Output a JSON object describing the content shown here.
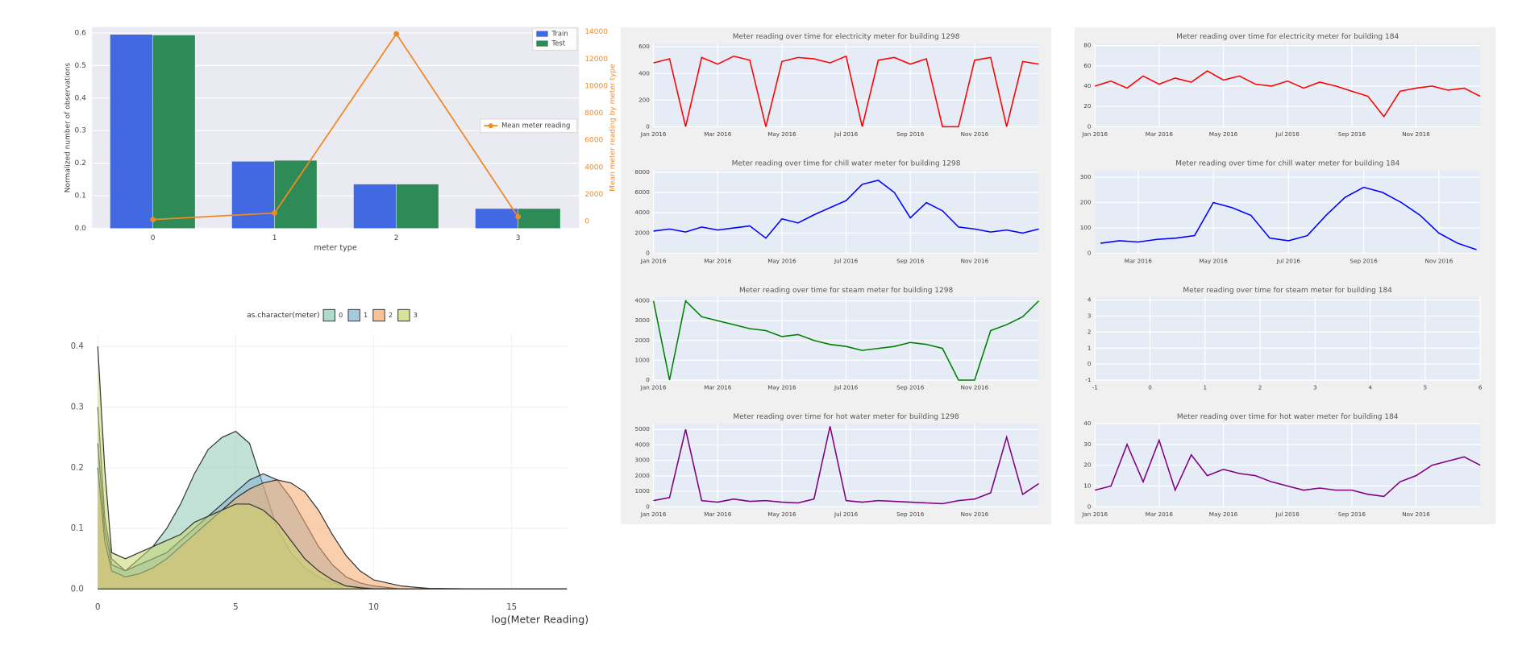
{
  "chart_data": [
    {
      "type": "bar",
      "categories": [
        "0",
        "1",
        "2",
        "3"
      ],
      "series": [
        {
          "name": "Train",
          "color": "#4169e1",
          "values": [
            0.595,
            0.205,
            0.135,
            0.06
          ]
        },
        {
          "name": "Test",
          "color": "#2e8b57",
          "values": [
            0.593,
            0.208,
            0.135,
            0.06
          ]
        },
        {
          "name": "Mean meter reading",
          "color": "#f08a24",
          "type": "line",
          "axis": "y2",
          "values": [
            140,
            630,
            13860,
            350
          ]
        }
      ],
      "xlabel": "meter type",
      "ylabel": "Normalized number of observations",
      "y2label": "Mean meter reading by meter type",
      "ylim": [
        0,
        0.618
      ],
      "yticks": [
        {
          "value": 0,
          "label": "0.0"
        },
        0.1,
        0.2,
        0.3,
        0.4,
        0.5,
        0.6
      ],
      "y2lim": [
        -500,
        14360
      ],
      "y2ticks": [
        0,
        2000,
        4000,
        6000,
        8000,
        10000,
        12000,
        14000
      ],
      "grid": true,
      "legend": "upper right"
    },
    {
      "type": "area",
      "xlabel": "log(Meter Reading)",
      "legend_title": "as.character(meter)",
      "x": [
        0,
        0.25,
        0.5,
        1,
        1.5,
        2,
        2.5,
        3,
        3.5,
        4,
        4.5,
        5,
        5.5,
        6,
        6.5,
        7,
        7.5,
        8,
        8.5,
        9,
        9.5,
        10,
        11,
        12,
        14,
        17
      ],
      "series": [
        {
          "name": "0",
          "color": "#8fcab6",
          "values": [
            0.3,
            0.12,
            0.05,
            0.03,
            0.05,
            0.07,
            0.1,
            0.14,
            0.19,
            0.23,
            0.25,
            0.26,
            0.24,
            0.17,
            0.1,
            0.06,
            0.035,
            0.02,
            0.01,
            0.005,
            0.003,
            0.001,
            0,
            0,
            0,
            0
          ]
        },
        {
          "name": "1",
          "color": "#7fb3cf",
          "values": [
            0.24,
            0.1,
            0.04,
            0.03,
            0.04,
            0.05,
            0.06,
            0.08,
            0.1,
            0.12,
            0.14,
            0.16,
            0.18,
            0.19,
            0.18,
            0.15,
            0.11,
            0.07,
            0.04,
            0.02,
            0.01,
            0.005,
            0,
            0,
            0,
            0
          ]
        },
        {
          "name": "2",
          "color": "#f5a76c",
          "values": [
            0.2,
            0.08,
            0.03,
            0.02,
            0.025,
            0.035,
            0.05,
            0.07,
            0.09,
            0.11,
            0.13,
            0.15,
            0.165,
            0.175,
            0.18,
            0.175,
            0.16,
            0.13,
            0.09,
            0.055,
            0.03,
            0.015,
            0.005,
            0.001,
            0,
            0
          ]
        },
        {
          "name": "3",
          "color": "#c9d66e",
          "values": [
            0.4,
            0.2,
            0.06,
            0.05,
            0.06,
            0.07,
            0.08,
            0.09,
            0.11,
            0.12,
            0.13,
            0.14,
            0.14,
            0.13,
            0.11,
            0.08,
            0.05,
            0.03,
            0.015,
            0.005,
            0.002,
            0,
            0,
            0,
            0,
            0
          ]
        }
      ],
      "xlim": [
        0,
        17
      ],
      "xticks": [
        0,
        5,
        10,
        15
      ],
      "ylim": [
        0,
        0.42
      ],
      "yticks": [
        {
          "value": 0,
          "label": "0.0"
        },
        0.1,
        0.2,
        0.3,
        0.4
      ],
      "grid": true
    },
    {
      "type": "line",
      "title": "Meter reading over time for electricity meter for building 1298",
      "x": [
        0,
        0.5,
        1,
        1.5,
        2,
        2.5,
        3,
        3.5,
        4,
        4.5,
        5,
        5.5,
        6,
        6.5,
        7,
        7.5,
        8,
        8.5,
        9,
        9.5,
        10,
        10.5,
        11,
        11.5,
        12
      ],
      "series": [
        {
          "color": "#ff0000",
          "values": [
            480,
            510,
            0,
            520,
            470,
            530,
            500,
            0,
            490,
            520,
            510,
            480,
            530,
            0,
            500,
            520,
            470,
            510,
            0,
            0,
            500,
            520,
            0,
            490,
            470
          ]
        }
      ],
      "xlim": [
        0,
        12
      ],
      "xticks": [
        {
          "value": 0,
          "label": "Jan 2016"
        },
        {
          "value": 2,
          "label": "Mar 2016"
        },
        {
          "value": 4,
          "label": "May 2016"
        },
        {
          "value": 6,
          "label": "Jul 2016"
        },
        {
          "value": 8,
          "label": "Sep 2016"
        },
        {
          "value": 10,
          "label": "Nov 2016"
        }
      ],
      "ylim": [
        0,
        625
      ],
      "yticks": [
        0,
        200,
        400,
        600
      ],
      "grid": true
    },
    {
      "type": "line",
      "title": "Meter reading over time for chill water meter for building 1298",
      "x": [
        0,
        0.5,
        1,
        1.5,
        2,
        2.5,
        3,
        3.5,
        4,
        4.5,
        5,
        5.5,
        6,
        6.5,
        7,
        7.5,
        8,
        8.5,
        9,
        9.5,
        10,
        10.5,
        11,
        11.5,
        12
      ],
      "series": [
        {
          "color": "#0000ff",
          "values": [
            2200,
            2400,
            2100,
            2600,
            2300,
            2500,
            2700,
            1500,
            3400,
            3000,
            3800,
            4500,
            5200,
            6800,
            7200,
            6000,
            3500,
            5000,
            4200,
            2600,
            2400,
            2100,
            2300,
            2000,
            2400
          ]
        }
      ],
      "xlim": [
        0,
        12
      ],
      "xticks": [
        {
          "value": 0,
          "label": "Jan 2016"
        },
        {
          "value": 2,
          "label": "Mar 2016"
        },
        {
          "value": 4,
          "label": "May 2016"
        },
        {
          "value": 6,
          "label": "Jul 2016"
        },
        {
          "value": 8,
          "label": "Sep 2016"
        },
        {
          "value": 10,
          "label": "Nov 2016"
        }
      ],
      "ylim": [
        0,
        8190
      ],
      "yticks": [
        0,
        2000,
        4000,
        6000,
        8000
      ],
      "grid": true
    },
    {
      "type": "line",
      "title": "Meter reading over time for steam meter for building 1298",
      "x": [
        0,
        0.5,
        1,
        1.5,
        2,
        2.5,
        3,
        3.5,
        4,
        4.5,
        5,
        5.5,
        6,
        6.5,
        7,
        7.5,
        8,
        8.5,
        9,
        9.5,
        10,
        10.5,
        11,
        11.5,
        12
      ],
      "series": [
        {
          "color": "#008000",
          "values": [
            4000,
            0,
            4000,
            3200,
            3000,
            2800,
            2600,
            2500,
            2200,
            2300,
            2000,
            1800,
            1700,
            1500,
            1600,
            1700,
            1900,
            1800,
            1600,
            0,
            0,
            2500,
            2800,
            3200,
            4000
          ]
        }
      ],
      "xlim": [
        0,
        12
      ],
      "xticks": [
        {
          "value": 0,
          "label": "Jan 2016"
        },
        {
          "value": 2,
          "label": "Mar 2016"
        },
        {
          "value": 4,
          "label": "May 2016"
        },
        {
          "value": 6,
          "label": "Jul 2016"
        },
        {
          "value": 8,
          "label": "Sep 2016"
        },
        {
          "value": 10,
          "label": "Nov 2016"
        }
      ],
      "ylim": [
        0,
        4200
      ],
      "yticks": [
        0,
        1000,
        2000,
        3000,
        4000
      ],
      "grid": true
    },
    {
      "type": "line",
      "title": "Meter reading over time for hot water meter for building 1298",
      "x": [
        0,
        0.5,
        1,
        1.5,
        2,
        2.5,
        3,
        3.5,
        4,
        4.5,
        5,
        5.5,
        6,
        6.5,
        7,
        7.5,
        8,
        8.5,
        9,
        9.5,
        10,
        10.5,
        11,
        11.5,
        12
      ],
      "series": [
        {
          "color": "#800080",
          "values": [
            400,
            600,
            5000,
            400,
            300,
            500,
            350,
            400,
            300,
            250,
            500,
            5200,
            400,
            300,
            400,
            350,
            300,
            250,
            200,
            400,
            500,
            900,
            4500,
            800,
            1500
          ]
        }
      ],
      "xlim": [
        0,
        12
      ],
      "xticks": [
        {
          "value": 0,
          "label": "Jan 2016"
        },
        {
          "value": 2,
          "label": "Mar 2016"
        },
        {
          "value": 4,
          "label": "May 2016"
        },
        {
          "value": 6,
          "label": "Jul 2016"
        },
        {
          "value": 8,
          "label": "Sep 2016"
        },
        {
          "value": 10,
          "label": "Nov 2016"
        }
      ],
      "ylim": [
        0,
        5375
      ],
      "yticks": [
        0,
        1000,
        2000,
        3000,
        4000,
        5000
      ],
      "grid": true
    },
    {
      "type": "line",
      "title": "Meter reading over time for electricity meter for building 184",
      "x": [
        0,
        0.5,
        1,
        1.5,
        2,
        2.5,
        3,
        3.5,
        4,
        4.5,
        5,
        5.5,
        6,
        6.5,
        7,
        7.5,
        8,
        8.5,
        9,
        9.5,
        10,
        10.5,
        11,
        11.5,
        12
      ],
      "series": [
        {
          "color": "#ff0000",
          "values": [
            40,
            45,
            38,
            50,
            42,
            48,
            44,
            55,
            46,
            50,
            42,
            40,
            45,
            38,
            44,
            40,
            35,
            30,
            10,
            35,
            38,
            40,
            36,
            38,
            30
          ]
        }
      ],
      "xlim": [
        0,
        12
      ],
      "xticks": [
        {
          "value": 0,
          "label": "Jan 2016"
        },
        {
          "value": 2,
          "label": "Mar 2016"
        },
        {
          "value": 4,
          "label": "May 2016"
        },
        {
          "value": 6,
          "label": "Jul 2016"
        },
        {
          "value": 8,
          "label": "Sep 2016"
        },
        {
          "value": 10,
          "label": "Nov 2016"
        }
      ],
      "ylim": [
        0,
        82
      ],
      "yticks": [
        0,
        20,
        40,
        60,
        80
      ],
      "grid": true
    },
    {
      "type": "line",
      "title": "Meter reading over time for chill water meter for building 184",
      "x": [
        1,
        1.5,
        2,
        2.5,
        3,
        3.5,
        4,
        4.5,
        5,
        5.5,
        6,
        6.5,
        7,
        7.5,
        8,
        8.5,
        9,
        9.5,
        10,
        10.5,
        11
      ],
      "series": [
        {
          "color": "#0000ff",
          "values": [
            40,
            50,
            45,
            55,
            60,
            70,
            200,
            180,
            150,
            60,
            50,
            70,
            150,
            220,
            260,
            240,
            200,
            150,
            80,
            40,
            15
          ]
        }
      ],
      "xlim": [
        0.85,
        11.1
      ],
      "xticks": [
        {
          "value": 2,
          "label": "Mar 2016"
        },
        {
          "value": 4,
          "label": "May 2016"
        },
        {
          "value": 6,
          "label": "Jul 2016"
        },
        {
          "value": 8,
          "label": "Sep 2016"
        },
        {
          "value": 10,
          "label": "Nov 2016"
        }
      ],
      "ylim": [
        0,
        327
      ],
      "yticks": [
        0,
        100,
        200,
        300
      ],
      "grid": true
    },
    {
      "type": "line",
      "title": "Meter reading over time for steam meter for building 184",
      "x": [],
      "series": [],
      "xlim": [
        -1,
        6
      ],
      "xticks": [
        -1,
        0,
        1,
        2,
        3,
        4,
        5,
        6
      ],
      "ylim": [
        -1,
        4.2
      ],
      "yticks": [
        -1,
        0,
        1,
        2,
        3,
        4
      ],
      "grid": true
    },
    {
      "type": "line",
      "title": "Meter reading over time for hot water meter for building 184",
      "x": [
        0,
        0.5,
        1,
        1.5,
        2,
        2.5,
        3,
        3.5,
        4,
        4.5,
        5,
        5.5,
        6,
        6.5,
        7,
        7.5,
        8,
        8.5,
        9,
        9.5,
        10,
        10.5,
        11,
        11.5,
        12
      ],
      "series": [
        {
          "color": "#800080",
          "values": [
            8,
            10,
            30,
            12,
            32,
            8,
            25,
            15,
            18,
            16,
            15,
            12,
            10,
            8,
            9,
            8,
            8,
            6,
            5,
            12,
            15,
            20,
            22,
            24,
            20
          ]
        }
      ],
      "xlim": [
        0,
        12
      ],
      "xticks": [
        {
          "value": 0,
          "label": "Jan 2016"
        },
        {
          "value": 2,
          "label": "Mar 2016"
        },
        {
          "value": 4,
          "label": "May 2016"
        },
        {
          "value": 6,
          "label": "Jul 2016"
        },
        {
          "value": 8,
          "label": "Sep 2016"
        },
        {
          "value": 10,
          "label": "Nov 2016"
        }
      ],
      "ylim": [
        0,
        40
      ],
      "yticks": [
        0,
        10,
        20,
        30,
        40
      ],
      "grid": true
    }
  ]
}
